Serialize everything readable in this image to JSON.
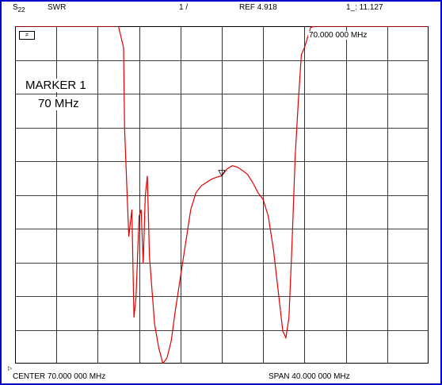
{
  "header": {
    "param_main": "S",
    "param_sub": "22",
    "format": "SWR",
    "scale": "1 /",
    "ref": "REF 4.918",
    "marker_value": "1_: 11.127"
  },
  "format_box": "≠",
  "marker": {
    "label": "MARKER 1",
    "freq": "70 MHz",
    "readout": "70.000 000 MHz"
  },
  "footer": {
    "center": "CENTER  70.000 000 MHz",
    "span": "SPAN   40.000 000 MHz"
  },
  "colors": {
    "trace": "#e00000",
    "grid": "#000000",
    "border": "#0000c8"
  },
  "chart_data": {
    "type": "line",
    "title": "",
    "xlabel": "",
    "ylabel": "",
    "xlim": [
      50,
      90
    ],
    "ylim": [
      -0.082,
      4.918
    ],
    "grid": true,
    "series": [
      {
        "x": [
          50.0,
          53.0,
          57.0,
          60.0,
          60.5,
          60.6,
          60.8,
          61.0,
          61.3,
          61.5,
          61.7,
          62.0,
          62.2,
          62.4,
          62.6,
          62.8,
          63.0,
          63.5,
          63.9,
          64.3,
          64.7,
          65.1,
          65.5,
          66.0,
          66.5,
          67.0,
          67.5,
          68.0,
          68.5,
          69.0,
          69.5,
          70.0,
          70.5,
          71.0,
          71.5,
          72.0,
          72.5,
          73.0,
          73.5,
          74.0,
          74.5,
          75.0,
          75.3,
          75.6,
          75.9,
          76.2,
          76.5,
          76.8,
          77.1,
          77.4,
          77.7,
          78.0,
          78.3,
          78.6,
          79.0,
          80.0,
          84.0,
          88.0,
          90.0
        ],
        "y": [
          4.918,
          4.918,
          4.918,
          4.918,
          4.6,
          3.4,
          2.6,
          1.8,
          2.2,
          0.6,
          0.9,
          2.1,
          2.2,
          1.4,
          2.4,
          2.7,
          1.5,
          0.5,
          0.15,
          -0.08,
          0.0,
          0.25,
          0.7,
          1.2,
          1.7,
          2.2,
          2.45,
          2.55,
          2.6,
          2.65,
          2.68,
          2.7,
          2.8,
          2.85,
          2.83,
          2.78,
          2.72,
          2.6,
          2.45,
          2.35,
          2.1,
          1.6,
          1.2,
          0.8,
          0.4,
          0.3,
          0.6,
          1.7,
          3.0,
          3.8,
          4.5,
          4.6,
          4.75,
          4.9,
          4.918,
          4.918,
          4.918,
          4.918,
          4.918
        ]
      }
    ]
  }
}
